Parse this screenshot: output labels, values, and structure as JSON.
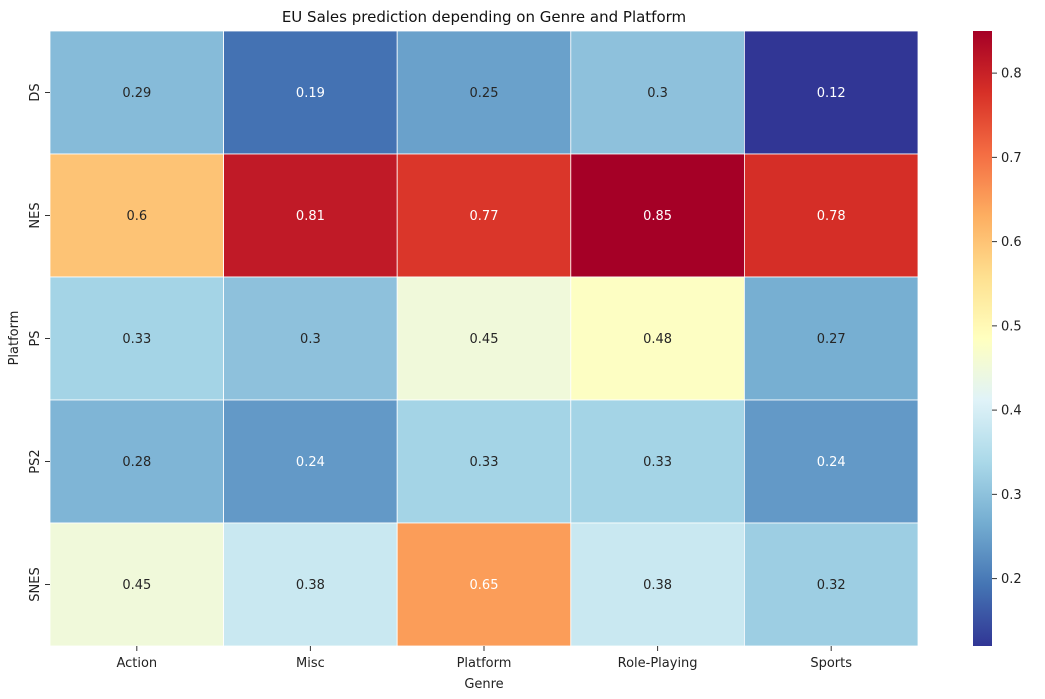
{
  "chart_data": {
    "type": "heatmap",
    "title": "EU Sales prediction depending on Genre and Platform",
    "xlabel": "Genre",
    "ylabel": "Platform",
    "x_categories": [
      "Action",
      "Misc",
      "Platform",
      "Role-Playing",
      "Sports"
    ],
    "y_categories": [
      "DS",
      "NES",
      "PS",
      "PS2",
      "SNES"
    ],
    "values": [
      [
        0.29,
        0.19,
        0.25,
        0.3,
        0.12
      ],
      [
        0.6,
        0.81,
        0.77,
        0.85,
        0.78
      ],
      [
        0.33,
        0.3,
        0.45,
        0.48,
        0.27
      ],
      [
        0.28,
        0.24,
        0.33,
        0.33,
        0.24
      ],
      [
        0.45,
        0.38,
        0.65,
        0.38,
        0.32
      ]
    ],
    "colormap": "RdYlBu_r",
    "colorbar": {
      "range": [
        0.12,
        0.85
      ],
      "ticks": [
        0.2,
        0.3,
        0.4,
        0.5,
        0.6,
        0.7,
        0.8
      ],
      "tick_labels": [
        "0.2",
        "0.3",
        "0.4",
        "0.5",
        "0.6",
        "0.7",
        "0.8"
      ],
      "position": "right"
    },
    "grid": false
  }
}
